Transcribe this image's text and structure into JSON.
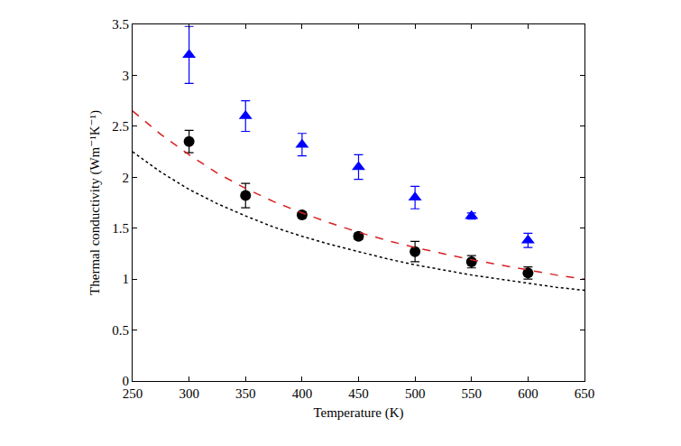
{
  "chart_data": {
    "type": "scatter",
    "x_label": "Temperature (K)",
    "y_label": "Thermal conductivity (Wm⁻¹K⁻¹)",
    "xlim": [
      250,
      650
    ],
    "xticks": [
      250,
      300,
      350,
      400,
      450,
      500,
      550,
      600,
      650
    ],
    "ylim": [
      0,
      3.5
    ],
    "yticks": [
      0,
      0.5,
      1,
      1.5,
      2,
      2.5,
      3,
      3.5
    ],
    "grid": false,
    "series": [
      {
        "type": "scatter",
        "color": "#0000ff",
        "marker": "triangle-up",
        "x": [
          300,
          350,
          400,
          450,
          500,
          550,
          600
        ],
        "values": [
          3.2,
          2.6,
          2.32,
          2.1,
          1.8,
          1.62,
          1.38
        ],
        "errors": [
          0.28,
          0.15,
          0.11,
          0.12,
          0.11,
          0.03,
          0.07
        ]
      },
      {
        "type": "scatter",
        "color": "#000000",
        "marker": "circle",
        "x": [
          300,
          350,
          400,
          450,
          500,
          550,
          600
        ],
        "values": [
          2.35,
          1.82,
          1.63,
          1.42,
          1.27,
          1.17,
          1.06
        ],
        "errors": [
          0.11,
          0.12,
          0.03,
          0.03,
          0.1,
          0.06,
          0.06
        ]
      },
      {
        "type": "line",
        "color": "#d62020",
        "line_style": "dashed",
        "x": [
          250,
          275,
          300,
          325,
          350,
          375,
          400,
          425,
          450,
          475,
          500,
          525,
          550,
          575,
          600,
          625,
          650
        ],
        "values": [
          2.65,
          2.42,
          2.22,
          2.04,
          1.89,
          1.76,
          1.65,
          1.55,
          1.46,
          1.38,
          1.31,
          1.25,
          1.19,
          1.14,
          1.09,
          1.04,
          1.0
        ]
      },
      {
        "type": "line",
        "color": "#000000",
        "line_style": "dotted",
        "x": [
          250,
          275,
          300,
          325,
          350,
          375,
          400,
          425,
          450,
          475,
          500,
          525,
          550,
          575,
          600,
          625,
          650
        ],
        "values": [
          2.25,
          2.05,
          1.88,
          1.74,
          1.62,
          1.51,
          1.42,
          1.34,
          1.27,
          1.2,
          1.14,
          1.09,
          1.04,
          1.0,
          0.96,
          0.92,
          0.89
        ]
      }
    ]
  }
}
